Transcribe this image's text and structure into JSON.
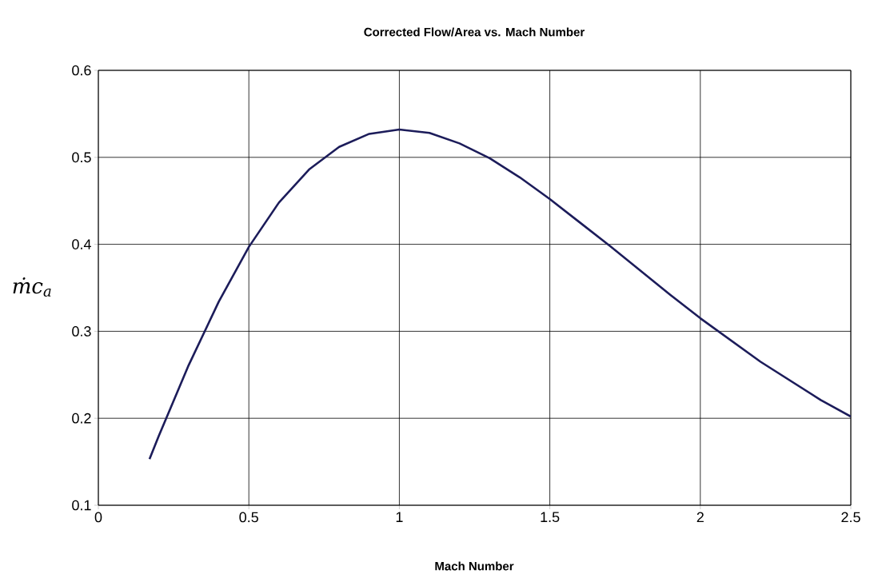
{
  "chart_data": {
    "type": "line",
    "title": "Corrected Flow/Area vs. Mach Number",
    "xlabel": "Mach Number",
    "ylabel": "ṁc$_{a}$",
    "x": [
      0.17,
      0.2,
      0.3,
      0.4,
      0.5,
      0.6,
      0.7,
      0.8,
      0.9,
      1.0,
      1.1,
      1.2,
      1.3,
      1.4,
      1.5,
      1.6,
      1.7,
      1.8,
      1.9,
      2.0,
      2.1,
      2.2,
      2.3,
      2.4,
      2.5
    ],
    "series": [
      {
        "color": "#1c1c5a",
        "values": [
          0.153,
          0.179,
          0.261,
          0.334,
          0.397,
          0.448,
          0.486,
          0.512,
          0.527,
          0.532,
          0.528,
          0.516,
          0.499,
          0.477,
          0.452,
          0.425,
          0.398,
          0.37,
          0.342,
          0.315,
          0.29,
          0.265,
          0.243,
          0.221,
          0.202
        ]
      }
    ],
    "xlim": [
      0,
      2.5
    ],
    "xticks": [
      0,
      0.5,
      1,
      1.5,
      2,
      2.5
    ],
    "ylim": [
      0.1,
      0.6
    ],
    "yticks": [
      0.1,
      0.2,
      0.3,
      0.4,
      0.5,
      0.6
    ],
    "grid": true,
    "marker": "none",
    "line_style": "solid"
  }
}
